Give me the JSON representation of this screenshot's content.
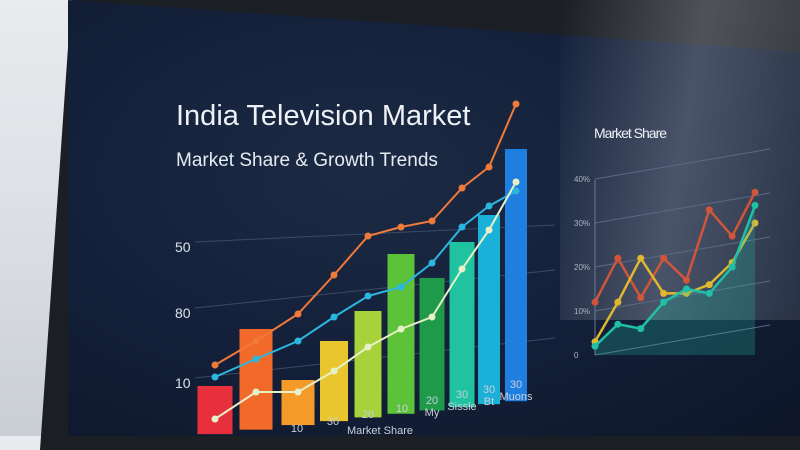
{
  "chart_data": [
    {
      "type": "bar",
      "title": "India Television Market",
      "subtitle": "Market Share & Growth Trends",
      "y_tick_labels": [
        "50",
        "80",
        "10"
      ],
      "x_tick_labels": [
        "10",
        "30",
        "20",
        "Market Share",
        "10",
        "20 My",
        "30 Sissle",
        "30 Bt",
        "30 Muons"
      ],
      "ylim": [
        0,
        120
      ],
      "grid": true,
      "bar_colors": [
        "#e8303c",
        "#f26a2a",
        "#f39a2a",
        "#e9c62e",
        "#a8d23a",
        "#5cc23a",
        "#1f9a4a",
        "#1fc3a0",
        "#1ab0d8",
        "#1f7fe0"
      ],
      "values": [
        18,
        37,
        20,
        33,
        43,
        62,
        54,
        66,
        75,
        97
      ],
      "series": [
        {
          "color": "#f07a3a",
          "values": [
            25,
            33,
            42,
            55,
            68,
            71,
            73,
            84,
            91,
            112
          ]
        },
        {
          "color": "#2bb6e0",
          "values": [
            21,
            27,
            33,
            41,
            48,
            51,
            59,
            71,
            78,
            83
          ]
        },
        {
          "color": "#e8f0c8",
          "values": [
            7,
            16,
            16,
            23,
            31,
            37,
            41,
            57,
            70,
            86
          ]
        }
      ]
    },
    {
      "type": "line",
      "title": "Market Share",
      "y_tick_labels": [
        "0",
        "10%",
        "20%",
        "30%",
        "40%"
      ],
      "ylim": [
        0,
        40
      ],
      "grid": true,
      "series": [
        {
          "color": "#d0553a",
          "values": [
            12,
            22,
            13,
            22,
            17,
            33,
            27,
            37
          ]
        },
        {
          "color": "#e0b830",
          "values": [
            3,
            12,
            22,
            14,
            14,
            16,
            21,
            30
          ]
        },
        {
          "color": "#1fbfa8",
          "values": [
            2,
            7,
            6,
            12,
            15,
            14,
            20,
            34
          ]
        }
      ]
    }
  ]
}
